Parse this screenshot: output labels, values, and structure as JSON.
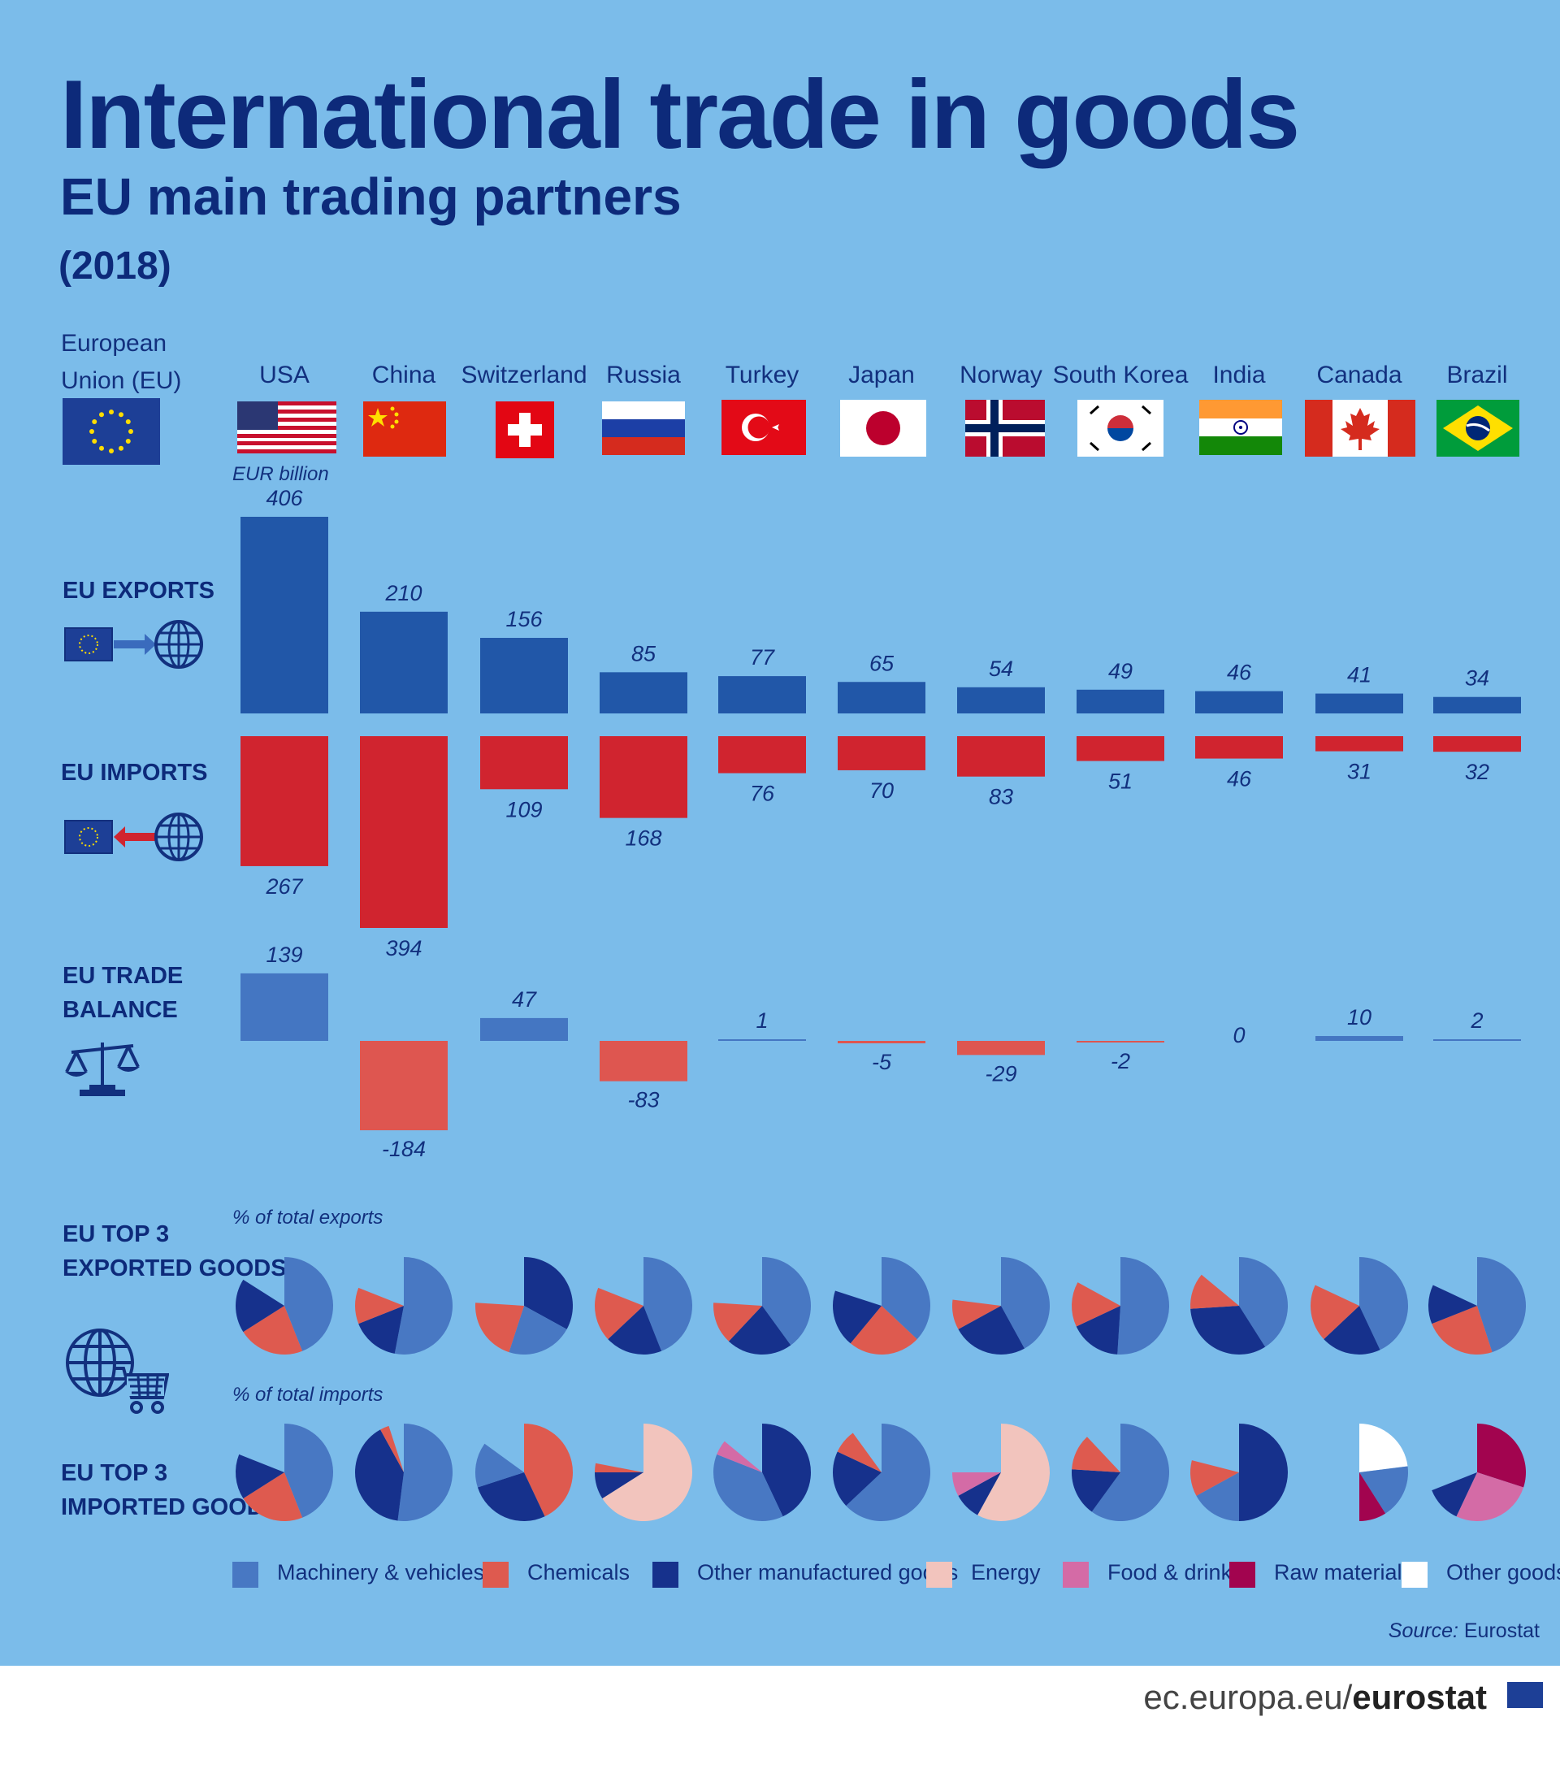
{
  "title": "International trade in goods",
  "subtitle": "EU main trading partners",
  "year": "(2018)",
  "eu_label": "European Union (EU)",
  "unit": "EUR billion",
  "sections": {
    "exports": "EU EXPORTS",
    "imports": "EU IMPORTS",
    "balance_1": "EU TRADE",
    "balance_2": "BALANCE",
    "top3_exp_1": "EU TOP 3",
    "top3_exp_2": "EXPORTED GOODS",
    "top3_imp_1": "EU TOP 3",
    "top3_imp_2": "IMPORTED GOODS"
  },
  "pct_exports": "% of total exports",
  "pct_imports": "% of total imports",
  "source_label": "Source:",
  "source_value": " Eurostat",
  "footer_plain": "ec.europa.eu/",
  "footer_bold": "eurostat",
  "colors": {
    "export": "#2157a8",
    "import": "#d0242f",
    "balance_pos": "#4476c2",
    "balance_neg": "#de5650",
    "Machinery & vehicles": "#4878c3",
    "Chemicals": "#de5a4f",
    "Other manufactured goods": "#16318c",
    "Energy": "#f2c4bd",
    "Food & drink": "#d46ba6",
    "Raw materials": "#a2044f",
    "Other goods": "#ffffff"
  },
  "legend": [
    "Machinery & vehicles",
    "Chemicals",
    "Other manufactured goods",
    "Energy",
    "Food & drink",
    "Raw materials",
    "Other goods"
  ],
  "chart_data": {
    "type": "bar",
    "categories": [
      "USA",
      "China",
      "Switzerland",
      "Russia",
      "Turkey",
      "Japan",
      "Norway",
      "South Korea",
      "India",
      "Canada",
      "Brazil"
    ],
    "series": [
      {
        "name": "EU EXPORTS",
        "values": [
          406,
          210,
          156,
          85,
          77,
          65,
          54,
          49,
          46,
          41,
          34
        ]
      },
      {
        "name": "EU IMPORTS",
        "values": [
          267,
          394,
          109,
          168,
          76,
          70,
          83,
          51,
          46,
          31,
          32
        ]
      },
      {
        "name": "EU TRADE BALANCE",
        "values": [
          139,
          -184,
          47,
          -83,
          1,
          -5,
          -29,
          -2,
          0,
          10,
          2
        ]
      }
    ],
    "export_value_labels": [
      "406",
      "210",
      "156",
      "85",
      "77",
      "65",
      "54",
      "49",
      "46",
      "41",
      "34"
    ],
    "import_value_labels": [
      "267",
      "394",
      "109",
      "168",
      "76",
      "70",
      "83",
      "51",
      "46",
      "31",
      "32"
    ],
    "balance_value_labels": [
      "139",
      "-184",
      "47",
      "-83",
      "1",
      "-5",
      "-29",
      "-2",
      "0",
      "10",
      "2"
    ],
    "exported_goods_pies": [
      {
        "slices": [
          {
            "cat": "Machinery & vehicles",
            "pct": 44
          },
          {
            "cat": "Chemicals",
            "pct": 22
          },
          {
            "cat": "Other manufactured goods",
            "pct": 18
          }
        ]
      },
      {
        "slices": [
          {
            "cat": "Machinery & vehicles",
            "pct": 53
          },
          {
            "cat": "Other manufactured goods",
            "pct": 16
          },
          {
            "cat": "Chemicals",
            "pct": 12
          }
        ]
      },
      {
        "slices": [
          {
            "cat": "Other manufactured goods",
            "pct": 33
          },
          {
            "cat": "Machinery & vehicles",
            "pct": 22
          },
          {
            "cat": "Chemicals",
            "pct": 21
          }
        ]
      },
      {
        "slices": [
          {
            "cat": "Machinery & vehicles",
            "pct": 44
          },
          {
            "cat": "Other manufactured goods",
            "pct": 19
          },
          {
            "cat": "Chemicals",
            "pct": 18
          }
        ]
      },
      {
        "slices": [
          {
            "cat": "Machinery & vehicles",
            "pct": 40
          },
          {
            "cat": "Other manufactured goods",
            "pct": 22
          },
          {
            "cat": "Chemicals",
            "pct": 14
          }
        ]
      },
      {
        "slices": [
          {
            "cat": "Machinery & vehicles",
            "pct": 37
          },
          {
            "cat": "Chemicals",
            "pct": 24
          },
          {
            "cat": "Other manufactured goods",
            "pct": 19
          }
        ]
      },
      {
        "slices": [
          {
            "cat": "Machinery & vehicles",
            "pct": 42
          },
          {
            "cat": "Other manufactured goods",
            "pct": 25
          },
          {
            "cat": "Chemicals",
            "pct": 10
          }
        ]
      },
      {
        "slices": [
          {
            "cat": "Machinery & vehicles",
            "pct": 51
          },
          {
            "cat": "Other manufactured goods",
            "pct": 17
          },
          {
            "cat": "Chemicals",
            "pct": 15
          }
        ]
      },
      {
        "slices": [
          {
            "cat": "Machinery & vehicles",
            "pct": 41
          },
          {
            "cat": "Other manufactured goods",
            "pct": 33
          },
          {
            "cat": "Chemicals",
            "pct": 12
          }
        ]
      },
      {
        "slices": [
          {
            "cat": "Machinery & vehicles",
            "pct": 43
          },
          {
            "cat": "Other manufactured goods",
            "pct": 20
          },
          {
            "cat": "Chemicals",
            "pct": 19
          }
        ]
      },
      {
        "slices": [
          {
            "cat": "Machinery & vehicles",
            "pct": 45
          },
          {
            "cat": "Chemicals",
            "pct": 24
          },
          {
            "cat": "Other manufactured goods",
            "pct": 13
          }
        ]
      }
    ],
    "imported_goods_pies": [
      {
        "slices": [
          {
            "cat": "Machinery & vehicles",
            "pct": 44
          },
          {
            "cat": "Chemicals",
            "pct": 22
          },
          {
            "cat": "Other manufactured goods",
            "pct": 15
          }
        ]
      },
      {
        "slices": [
          {
            "cat": "Machinery & vehicles",
            "pct": 52
          },
          {
            "cat": "Other manufactured goods",
            "pct": 40
          },
          {
            "cat": "Chemicals",
            "pct": 3
          }
        ]
      },
      {
        "slices": [
          {
            "cat": "Chemicals",
            "pct": 43
          },
          {
            "cat": "Other manufactured goods",
            "pct": 27
          },
          {
            "cat": "Machinery & vehicles",
            "pct": 15
          }
        ]
      },
      {
        "slices": [
          {
            "cat": "Energy",
            "pct": 66
          },
          {
            "cat": "Other manufactured goods",
            "pct": 9
          },
          {
            "cat": "Chemicals",
            "pct": 3
          }
        ]
      },
      {
        "slices": [
          {
            "cat": "Other manufactured goods",
            "pct": 43
          },
          {
            "cat": "Machinery & vehicles",
            "pct": 38
          },
          {
            "cat": "Food & drink",
            "pct": 5
          }
        ]
      },
      {
        "slices": [
          {
            "cat": "Machinery & vehicles",
            "pct": 63
          },
          {
            "cat": "Other manufactured goods",
            "pct": 19
          },
          {
            "cat": "Chemicals",
            "pct": 8
          }
        ]
      },
      {
        "slices": [
          {
            "cat": "Energy",
            "pct": 58
          },
          {
            "cat": "Other manufactured goods",
            "pct": 9
          },
          {
            "cat": "Food & drink",
            "pct": 8
          }
        ]
      },
      {
        "slices": [
          {
            "cat": "Machinery & vehicles",
            "pct": 60
          },
          {
            "cat": "Other manufactured goods",
            "pct": 16
          },
          {
            "cat": "Chemicals",
            "pct": 12
          }
        ]
      },
      {
        "slices": [
          {
            "cat": "Other manufactured goods",
            "pct": 50
          },
          {
            "cat": "Machinery & vehicles",
            "pct": 17
          },
          {
            "cat": "Chemicals",
            "pct": 12
          }
        ]
      },
      {
        "slices": [
          {
            "cat": "Other goods",
            "pct": 23
          },
          {
            "cat": "Machinery & vehicles",
            "pct": 18
          },
          {
            "cat": "Raw materials",
            "pct": 9
          }
        ]
      },
      {
        "slices": [
          {
            "cat": "Raw materials",
            "pct": 30
          },
          {
            "cat": "Food & drink",
            "pct": 27
          },
          {
            "cat": "Other manufactured goods",
            "pct": 12
          }
        ]
      }
    ]
  }
}
